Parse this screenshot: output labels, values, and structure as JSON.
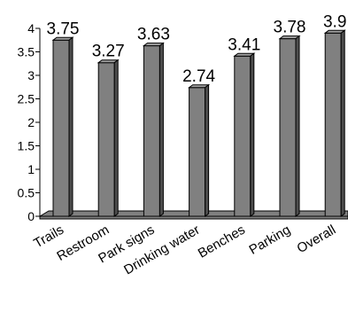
{
  "chart_data": {
    "type": "bar",
    "categories": [
      "Trails",
      "Restroom",
      "Park signs",
      "Drinking water",
      "Benches",
      "Parking",
      "Overall"
    ],
    "values": [
      3.75,
      3.27,
      3.63,
      2.74,
      3.41,
      3.78,
      3.9
    ],
    "data_labels": [
      "3.75",
      "3.27",
      "3.63",
      "2.74",
      "3.41",
      "3.78",
      "3.9"
    ],
    "ylim": [
      0,
      4
    ],
    "yticks": [
      0,
      0.5,
      1,
      1.5,
      2,
      2.5,
      3,
      3.5,
      4
    ],
    "ytick_labels": [
      "0",
      "0.5",
      "1",
      "1.5",
      "2",
      "2.5",
      "3",
      "3.5",
      "4"
    ],
    "grid": false,
    "legend": "none",
    "bar_color": "#808080",
    "floor_color": "#808080"
  }
}
